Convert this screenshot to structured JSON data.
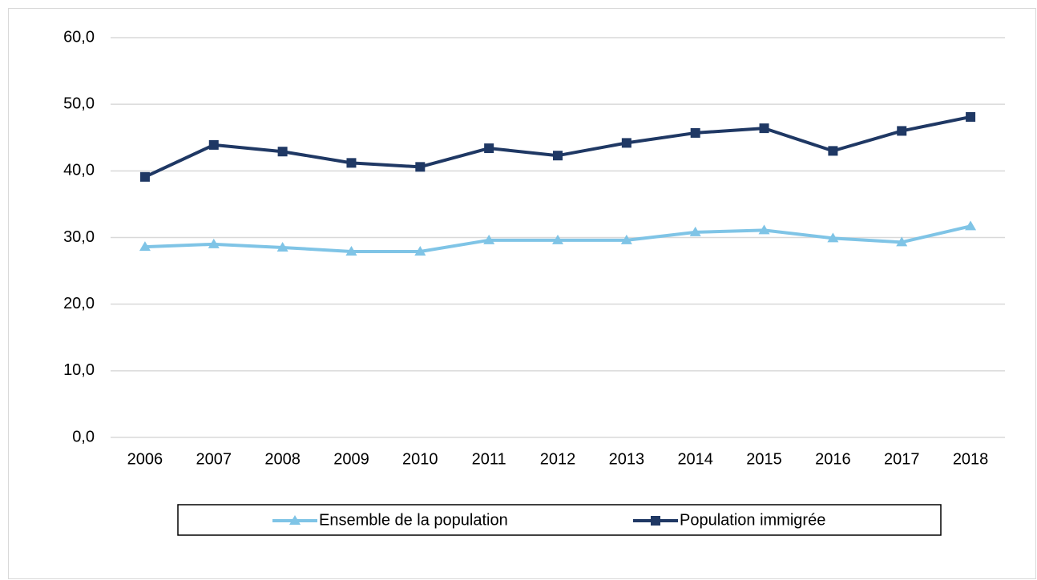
{
  "chart_data": {
    "type": "line",
    "categories": [
      "2006",
      "2007",
      "2008",
      "2009",
      "2010",
      "2011",
      "2012",
      "2013",
      "2014",
      "2015",
      "2016",
      "2017",
      "2018"
    ],
    "series": [
      {
        "name": "Ensemble de la population",
        "color": "#7fc4e6",
        "marker": "triangle",
        "values": [
          28.6,
          29.0,
          28.5,
          27.9,
          27.9,
          29.6,
          29.6,
          29.6,
          30.8,
          31.1,
          29.9,
          29.3,
          31.7
        ]
      },
      {
        "name": "Population immigrée",
        "color": "#1f3864",
        "marker": "square",
        "values": [
          39.1,
          43.9,
          42.9,
          41.2,
          40.6,
          43.4,
          42.3,
          44.2,
          45.7,
          46.4,
          43.0,
          46.0,
          48.1
        ]
      }
    ],
    "ylim": [
      0,
      60
    ],
    "yticks": [
      {
        "value": 0,
        "label": "0,0"
      },
      {
        "value": 10,
        "label": "10,0"
      },
      {
        "value": 20,
        "label": "20,0"
      },
      {
        "value": 30,
        "label": "30,0"
      },
      {
        "value": 40,
        "label": "40,0"
      },
      {
        "value": 50,
        "label": "50,0"
      },
      {
        "value": 60,
        "label": "60,0"
      }
    ],
    "grid": true,
    "legend": "bottom"
  }
}
